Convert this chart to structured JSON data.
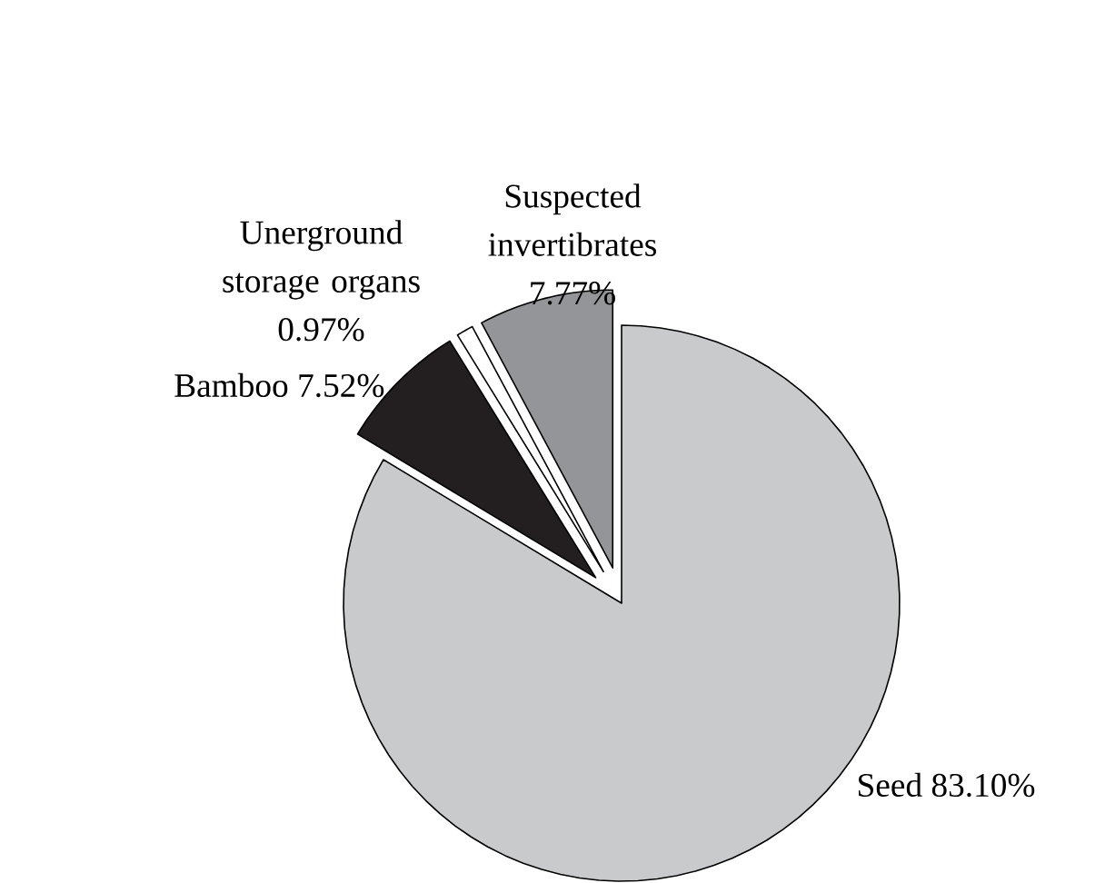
{
  "chart_data": {
    "type": "pie",
    "categories": [
      "Seed",
      "Bamboo",
      "Unerground storage organs",
      "Suspected invertibrates"
    ],
    "values": [
      83.1,
      7.52,
      0.97,
      7.77
    ],
    "value_labels": [
      "83.10%",
      "7.52%",
      "0.97%",
      "7.77%"
    ],
    "colors": [
      "#c9cacc",
      "#231f20",
      "#ffffff",
      "#939598"
    ]
  }
}
